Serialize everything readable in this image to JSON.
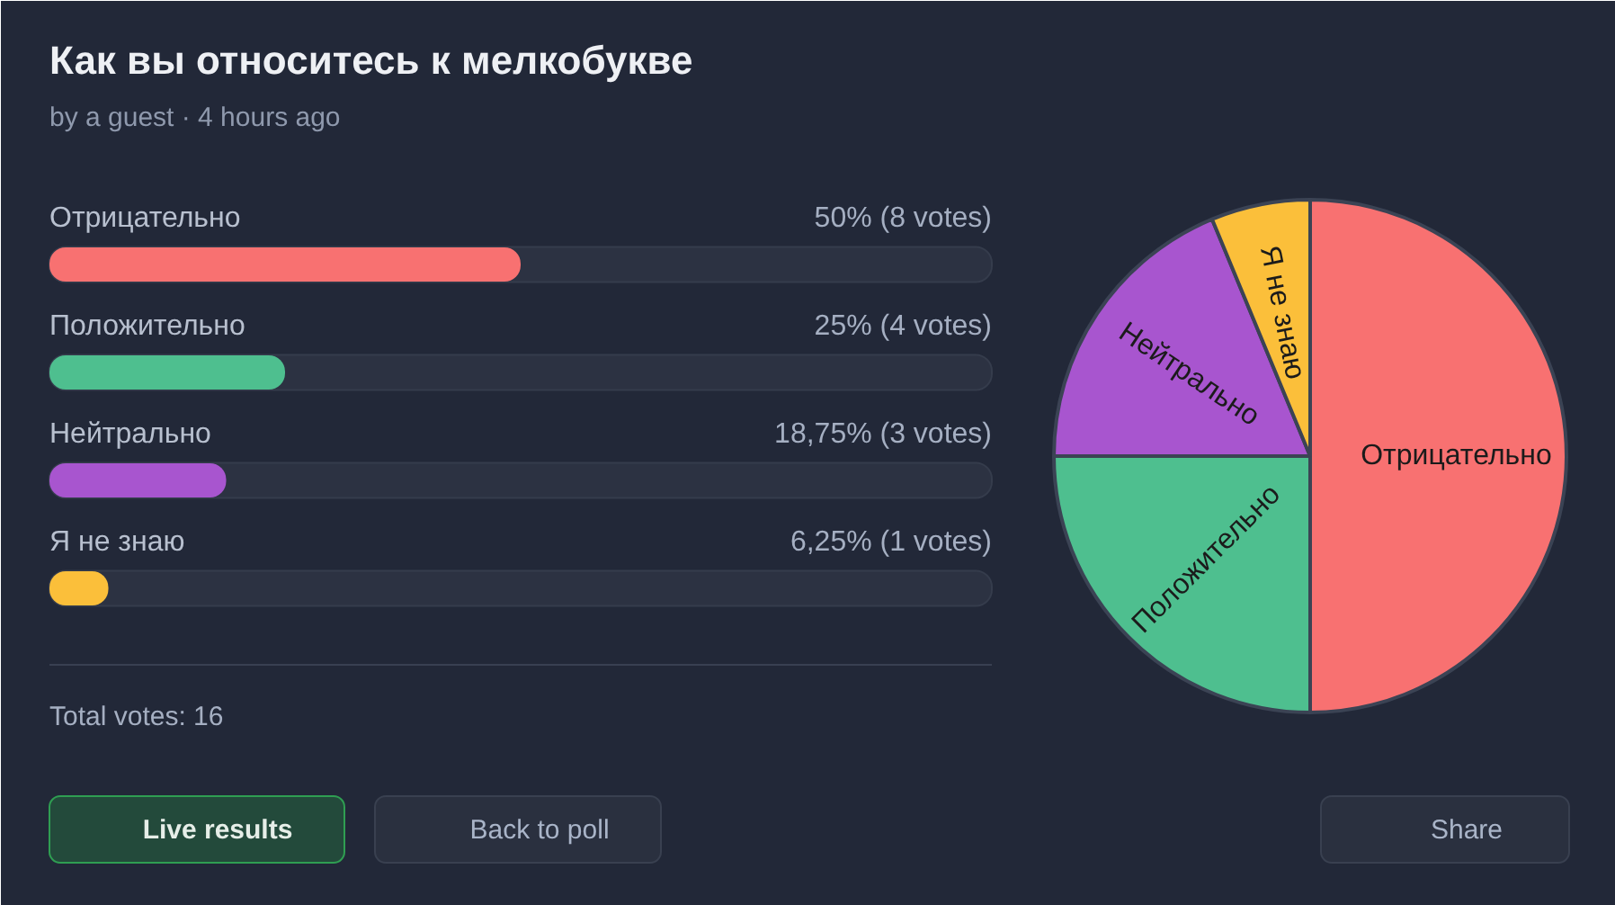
{
  "chart_data": [
    {
      "type": "bar",
      "orientation": "horizontal",
      "title": "Как вы относитесь к мелкобукве",
      "subtitle": "by a guest · 4 hours ago",
      "categories": [
        "Отрицательно",
        "Положительно",
        "Нейтрально",
        "Я не знаю"
      ],
      "values": [
        50,
        25,
        18.75,
        6.25
      ],
      "colors": [
        "#f87171",
        "#4ebf8f",
        "#a855cf",
        "#fbbf3a"
      ],
      "value_labels": [
        "50% (8 votes)",
        "25% (4 votes)",
        "18,75% (3 votes)",
        "6,25% (1 votes)"
      ],
      "xlim": [
        0,
        100
      ],
      "tick_labels": false,
      "annotations": [
        "Total votes: 16",
        "Live results",
        "Back to poll",
        "Share"
      ]
    },
    {
      "type": "pie",
      "categories": [
        "Отрицательно",
        "Положительно",
        "Нейтрально",
        "Я не знаю"
      ],
      "values": [
        50,
        25,
        18.75,
        6.25
      ],
      "colors": [
        "#f87171",
        "#4ebf8f",
        "#a855cf",
        "#fbbf3a"
      ]
    }
  ]
}
